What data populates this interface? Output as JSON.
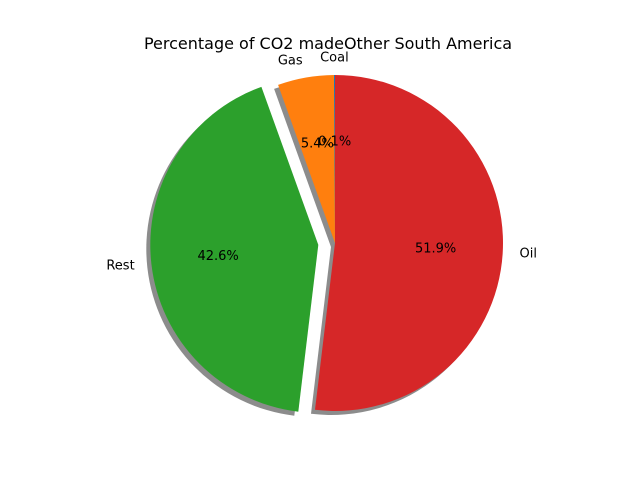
{
  "chart_data": {
    "type": "pie",
    "title": "Percentage of CO2 madeOther South America",
    "labels": [
      "Coal",
      "Gas",
      "Rest",
      "Oil"
    ],
    "values": [
      0.1,
      5.4,
      42.6,
      51.9
    ],
    "value_labels": [
      "0.1%",
      "5.4%",
      "42.6%",
      "51.9%"
    ],
    "colors": [
      "#1f77b4",
      "#ff7f0e",
      "#2ca02c",
      "#d62728"
    ],
    "exploded": [
      "Rest"
    ],
    "shadow": true,
    "start_angle_deg": 90,
    "direction": "counterclockwise"
  }
}
